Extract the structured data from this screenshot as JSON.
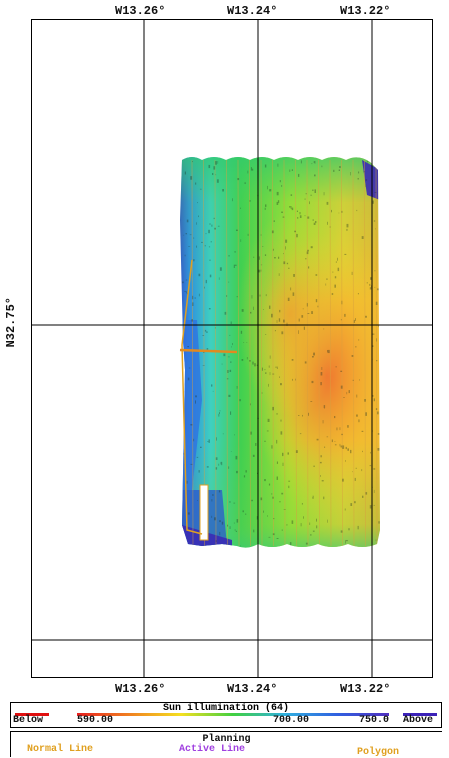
{
  "map": {
    "top_labels": [
      "W13.26°",
      "W13.24°",
      "W13.22°"
    ],
    "bottom_labels": [
      "W13.26°",
      "W13.24°",
      "W13.22°"
    ],
    "left_label": "N32.75°"
  },
  "legend": {
    "title": "Sun illumination (64)",
    "below": "Below",
    "min": "590.00",
    "mid": "700.00",
    "max": "750.0",
    "above": "Above",
    "colors": {
      "below": "#e01010",
      "above": "#3b22b8",
      "gradient": [
        "#e82020",
        "#f08020",
        "#f5e020",
        "#40d040",
        "#30b0e0",
        "#3060e0",
        "#5030c0"
      ]
    }
  },
  "planning": {
    "title": "Planning",
    "normal_line": "Normal Line",
    "active_line": "Active Line",
    "polygon": "Polygon",
    "colors": {
      "normal_line": "#e0a020",
      "active_line": "#a040e0",
      "polygon": "#e0a020"
    }
  }
}
